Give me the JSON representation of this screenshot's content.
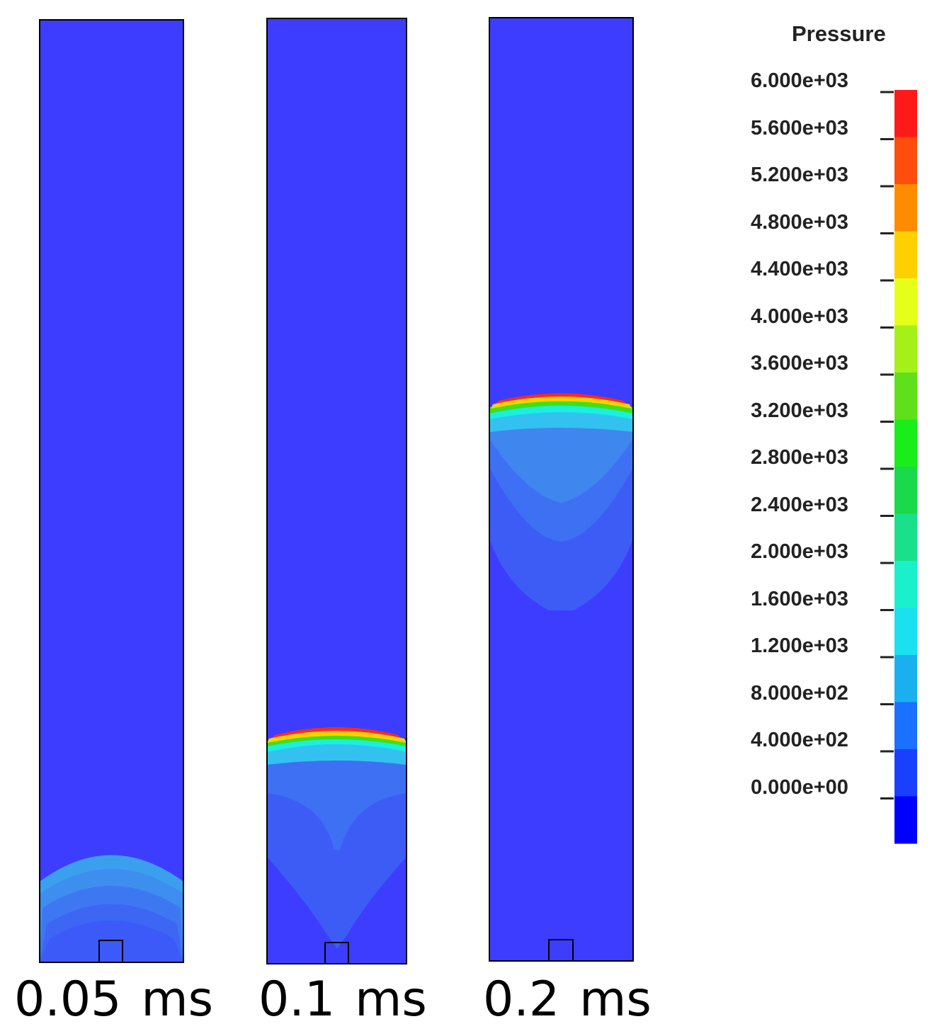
{
  "panels": [
    {
      "id": "p1",
      "time_value": "0.05",
      "time_unit": "ms"
    },
    {
      "id": "p2",
      "time_value": "0.1",
      "time_unit": "ms"
    },
    {
      "id": "p3",
      "time_value": "0.2",
      "time_unit": "ms"
    }
  ],
  "colors": {
    "background_field": "#3d3dff",
    "outline": "#000000"
  },
  "legend": {
    "title": "Pressure",
    "ticks": [
      "6.000e+03",
      "5.600e+03",
      "5.200e+03",
      "4.800e+03",
      "4.400e+03",
      "4.000e+03",
      "3.600e+03",
      "3.200e+03",
      "2.800e+03",
      "2.400e+03",
      "2.000e+03",
      "1.600e+03",
      "1.200e+03",
      "8.000e+02",
      "4.000e+02",
      "0.000e+00"
    ],
    "bands_top_to_bottom": [
      "#ff1a1a",
      "#ff4d0d",
      "#ff8c00",
      "#ffd000",
      "#e6ff1a",
      "#a6f01a",
      "#5fe01a",
      "#1aee1a",
      "#1ad94a",
      "#1ae08c",
      "#1af0cc",
      "#1ae0f0",
      "#1ab0f0",
      "#1a70ff",
      "#1a40ff",
      "#0000ff"
    ]
  }
}
